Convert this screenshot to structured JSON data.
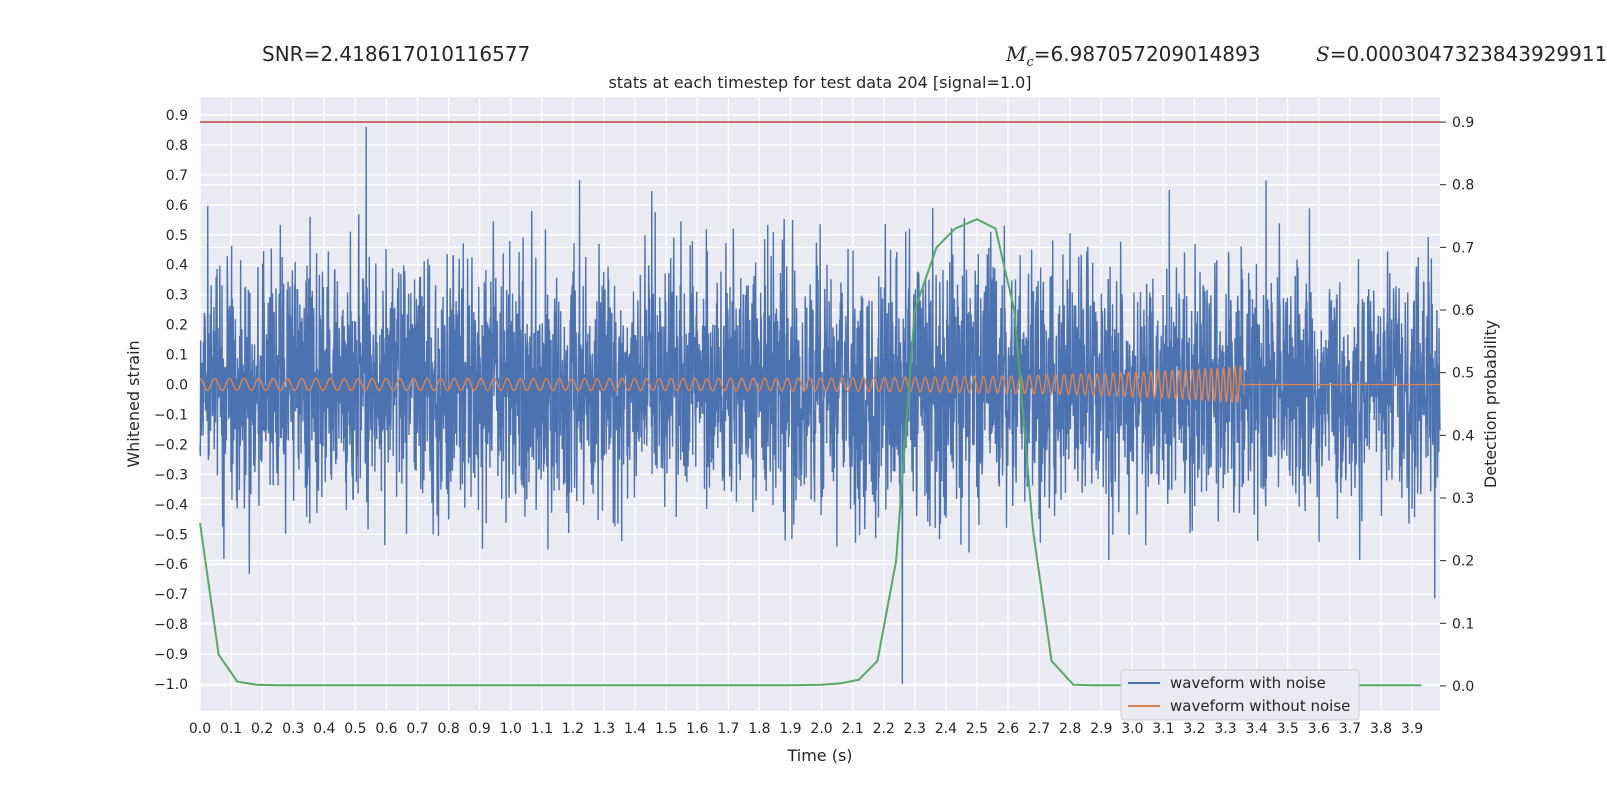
{
  "header": {
    "snr_label": "SNR=",
    "snr_value": "2.418617010116577",
    "mc_symbol": "M",
    "mc_subscript": "c",
    "mc_value": "=6.987057209014893",
    "s_symbol": "S",
    "s_value": "=0.0003047323843929911"
  },
  "chart_data": {
    "type": "line",
    "title": "stats at each timestep for test data 204 [signal=1.0]",
    "xlabel": "Time (s)",
    "ylabel": "Whitened strain",
    "y2label": "Detection probability",
    "xlim": [
      0.0,
      3.99
    ],
    "ylim": [
      -1.09,
      0.96
    ],
    "y2lim": [
      -0.04,
      0.94
    ],
    "xticks": [
      "0.0",
      "0.1",
      "0.2",
      "0.3",
      "0.4",
      "0.5",
      "0.6",
      "0.7",
      "0.8",
      "0.9",
      "1.0",
      "1.1",
      "1.2",
      "1.3",
      "1.4",
      "1.5",
      "1.6",
      "1.7",
      "1.8",
      "1.9",
      "2.0",
      "2.1",
      "2.2",
      "2.3",
      "2.4",
      "2.5",
      "2.6",
      "2.7",
      "2.8",
      "2.9",
      "3.0",
      "3.1",
      "3.2",
      "3.3",
      "3.4",
      "3.5",
      "3.6",
      "3.7",
      "3.8",
      "3.9"
    ],
    "yticks": [
      "0.9",
      "0.8",
      "0.7",
      "0.6",
      "0.5",
      "0.4",
      "0.3",
      "0.2",
      "0.1",
      "0.0",
      "−0.1",
      "−0.2",
      "−0.3",
      "−0.4",
      "−0.5",
      "−0.6",
      "−0.7",
      "−0.8",
      "−0.9",
      "−1.0"
    ],
    "y2ticks": [
      "0.9",
      "0.8",
      "0.7",
      "0.6",
      "0.5",
      "0.4",
      "0.3",
      "0.2",
      "0.1",
      "0.0"
    ],
    "grid": true,
    "legend_position": "lower-right",
    "threshold": {
      "y2": 0.9,
      "color": "#c44e52"
    },
    "series": [
      {
        "name": "waveform with noise",
        "axis": "left",
        "color": "#4c72b0",
        "noise_sigma": 0.21,
        "peak_max": 0.86,
        "peak_min": -1.0,
        "peak_min_time": 2.26
      },
      {
        "name": "waveform without noise",
        "axis": "left",
        "color": "#dd8452",
        "chirp_start": 0.0,
        "chirp_end": 3.35,
        "amplitude_start": 0.02,
        "amplitude_end": 0.06
      },
      {
        "axis": "right",
        "color": "#55a868",
        "x": [
          0.0,
          0.06,
          0.12,
          0.18,
          0.25,
          0.5,
          1.0,
          1.5,
          1.9,
          2.0,
          2.06,
          2.12,
          2.18,
          2.24,
          2.3,
          2.37,
          2.43,
          2.5,
          2.56,
          2.62,
          2.68,
          2.74,
          2.81,
          2.87,
          3.0,
          3.5,
          3.93
        ],
        "y": [
          0.26,
          0.05,
          0.007,
          0.002,
          0.001,
          0.001,
          0.001,
          0.001,
          0.001,
          0.002,
          0.004,
          0.01,
          0.04,
          0.2,
          0.6,
          0.7,
          0.73,
          0.745,
          0.73,
          0.6,
          0.25,
          0.04,
          0.002,
          0.001,
          0.001,
          0.001,
          0.001
        ]
      }
    ]
  }
}
